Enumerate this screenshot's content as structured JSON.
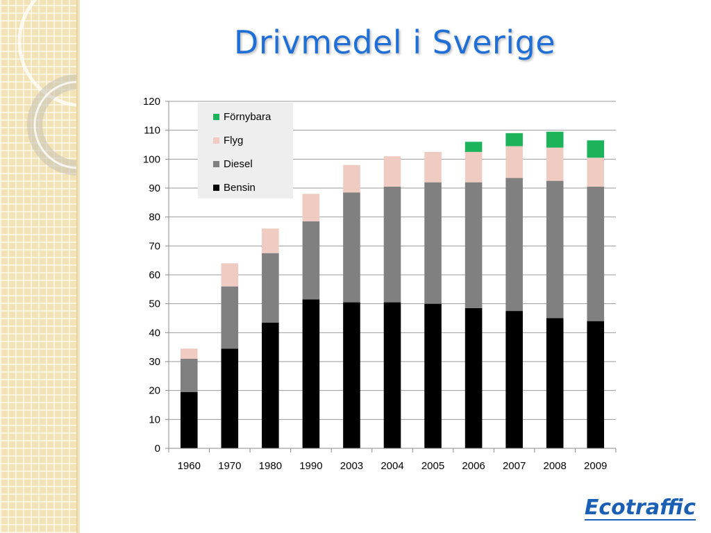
{
  "slide": {
    "title": "Drivmedel i Sverige",
    "logo_text": "Ecotraffic"
  },
  "colors": {
    "title": "#1f6fd6",
    "bensin": "#000000",
    "diesel": "#808080",
    "flyg": "#efcbc2",
    "fornybara": "#1db35a"
  },
  "chart_data": {
    "type": "bar",
    "stacked": true,
    "categories": [
      "1960",
      "1970",
      "1980",
      "1990",
      "2003",
      "2004",
      "2005",
      "2006",
      "2007",
      "2008",
      "2009"
    ],
    "series": [
      {
        "name": "Bensin",
        "color": "#000000",
        "values": [
          19.5,
          34.5,
          43.5,
          51.5,
          50.5,
          50.5,
          50,
          48.5,
          47.5,
          45,
          44
        ]
      },
      {
        "name": "Diesel",
        "color": "#808080",
        "values": [
          11.5,
          21.5,
          24,
          27,
          38,
          40,
          42,
          43.5,
          46,
          47.5,
          46.5
        ]
      },
      {
        "name": "Flyg",
        "color": "#efcbc2",
        "values": [
          3.5,
          8,
          8.5,
          9.5,
          9.5,
          10.5,
          10.5,
          10.5,
          11,
          11.5,
          10
        ]
      },
      {
        "name": "Förnybara",
        "color": "#1db35a",
        "values": [
          0,
          0,
          0,
          0,
          0,
          0,
          0,
          3.5,
          4.5,
          5.5,
          6
        ]
      }
    ],
    "legend_order": [
      "Förnybara",
      "Flyg",
      "Diesel",
      "Bensin"
    ],
    "ylim": [
      0,
      120
    ],
    "yticks": [
      "0",
      "10",
      "20",
      "30",
      "40",
      "50",
      "60",
      "70",
      "80",
      "90",
      "100",
      "110",
      "120"
    ],
    "grid": true,
    "legend_position": "top-left inside plot"
  }
}
